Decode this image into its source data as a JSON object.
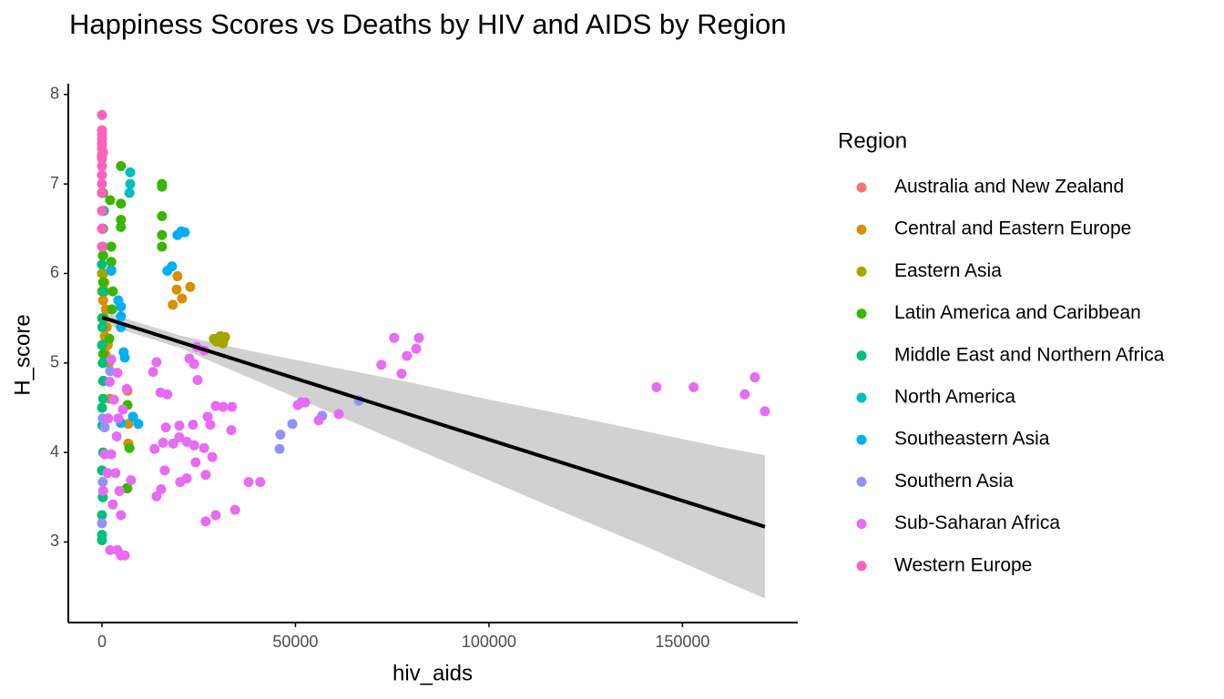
{
  "chart_data": {
    "type": "scatter",
    "title": "Happiness Scores vs Deaths by HIV and AIDS by Region",
    "x_label": "hiv_aids",
    "y_label": "H_score",
    "legend_title": "Region",
    "xlim": [
      -8700,
      179800
    ],
    "ylim": [
      2.1,
      8.12
    ],
    "xticks": [
      0,
      50000,
      100000,
      150000
    ],
    "yticks": [
      3,
      4,
      5,
      6,
      7,
      8
    ],
    "series": [
      {
        "name": "Australia and New Zealand",
        "color": "#F8766D",
        "x": [
          0,
          0,
          0,
          0
        ],
        "values": [
          7.31,
          7.28,
          7.33,
          7.29
        ]
      },
      {
        "name": "Central and Eastern Europe",
        "color": "#D89000",
        "x": [
          19500,
          19300,
          20700,
          22800,
          18300,
          6600,
          6800,
          6800,
          6600,
          200,
          400,
          600,
          800,
          300,
          1000,
          500,
          1200,
          700,
          1500,
          900,
          1800,
          400,
          2000
        ],
        "values": [
          5.97,
          5.82,
          5.72,
          5.85,
          5.65,
          4.69,
          4.32,
          4.1,
          3.6,
          6.2,
          6.0,
          5.9,
          5.8,
          5.7,
          5.6,
          5.5,
          5.4,
          5.3,
          5.2,
          5.1,
          5.0,
          4.8,
          4.6
        ]
      },
      {
        "name": "Eastern Asia",
        "color": "#A3A500",
        "x": [
          28900,
          30600,
          31300,
          31800,
          29600,
          0,
          0,
          0
        ],
        "values": [
          5.27,
          5.3,
          5.22,
          5.29,
          5.24,
          6.0,
          5.8,
          5.5
        ]
      },
      {
        "name": "Latin America and Caribbean",
        "color": "#39B600",
        "x": [
          15500,
          15500,
          15500,
          15500,
          15500,
          4900,
          4900,
          4900,
          4900,
          2100,
          2400,
          2400,
          2400,
          2800,
          2600,
          1900,
          7100,
          6400,
          6600,
          300,
          300,
          300,
          300,
          300,
          300,
          300
        ],
        "values": [
          7.0,
          6.97,
          6.64,
          6.43,
          6.3,
          7.2,
          6.78,
          6.6,
          6.52,
          6.82,
          6.3,
          6.13,
          6.04,
          5.8,
          5.6,
          5.27,
          4.05,
          3.6,
          4.53,
          6.9,
          6.5,
          6.2,
          5.9,
          5.5,
          5.1,
          4.8
        ]
      },
      {
        "name": "Middle East and Northern Africa",
        "color": "#00BF7D",
        "x": [
          0,
          100,
          200,
          0,
          300,
          100,
          0,
          200,
          400,
          0,
          100,
          300,
          0,
          200,
          0,
          0,
          0,
          500,
          100,
          300
        ],
        "values": [
          6.9,
          6.5,
          6.3,
          6.1,
          5.8,
          5.5,
          5.2,
          5.0,
          4.8,
          4.5,
          4.3,
          4.0,
          3.8,
          3.5,
          3.3,
          3.08,
          3.02,
          6.7,
          5.4,
          4.6
        ]
      },
      {
        "name": "North America",
        "color": "#00BFC4",
        "x": [
          7300,
          7300,
          7100
        ],
        "values": [
          7.13,
          7.0,
          6.9
        ]
      },
      {
        "name": "Southeastern Asia",
        "color": "#00B0F6",
        "x": [
          19500,
          20500,
          21400,
          18100,
          16900,
          4900,
          4900,
          4900,
          5600,
          5900,
          9400,
          8000,
          4900,
          2400,
          4200
        ],
        "values": [
          6.43,
          6.47,
          6.46,
          6.08,
          6.03,
          5.63,
          5.52,
          5.4,
          5.12,
          5.06,
          4.32,
          4.4,
          4.33,
          6.03,
          5.7
        ]
      },
      {
        "name": "Southern Asia",
        "color": "#9590FF",
        "x": [
          45900,
          46100,
          49200,
          56900,
          66400,
          51500,
          0,
          200,
          700,
          2100,
          200
        ],
        "values": [
          4.04,
          4.2,
          4.32,
          4.41,
          4.58,
          4.56,
          3.21,
          4.38,
          4.28,
          4.91,
          3.67
        ]
      },
      {
        "name": "Sub-Saharan Africa",
        "color": "#E76BF3",
        "x": [
          75500,
          72200,
          77400,
          78800,
          81200,
          81900,
          143300,
          152900,
          166100,
          168700,
          171300,
          56000,
          61200,
          52500,
          50600,
          33400,
          40900,
          37900,
          34400,
          29400,
          26800,
          28500,
          24200,
          26800,
          21900,
          20200,
          14100,
          15300,
          16200,
          16500,
          15800,
          13600,
          18400,
          20000,
          21900,
          23500,
          20000,
          23800,
          26400,
          31300,
          33600,
          29400,
          27300,
          28000,
          22600,
          23800,
          24700,
          24500,
          26400,
          14100,
          13200,
          15100,
          16900,
          2100,
          4000,
          4900,
          5900,
          2000,
          3100,
          4200,
          3800,
          2400,
          3500,
          4500,
          2800,
          4900,
          1600,
          700,
          1400,
          300,
          5400,
          6400,
          4000,
          2400,
          7500
        ],
        "values": [
          5.28,
          4.98,
          4.88,
          5.08,
          5.16,
          5.28,
          4.73,
          4.73,
          4.65,
          4.84,
          4.46,
          4.36,
          4.43,
          4.56,
          4.53,
          4.25,
          3.67,
          3.67,
          3.36,
          3.3,
          3.23,
          3.95,
          3.89,
          3.75,
          3.71,
          3.67,
          3.51,
          3.59,
          3.8,
          4.28,
          4.11,
          4.04,
          4.1,
          4.17,
          4.12,
          4.31,
          4.3,
          4.08,
          4.05,
          4.51,
          4.51,
          4.52,
          4.4,
          4.31,
          5.05,
          4.99,
          4.81,
          5.18,
          5.14,
          5.01,
          4.9,
          4.67,
          4.65,
          2.91,
          2.91,
          2.85,
          2.85,
          4.79,
          4.59,
          4.38,
          4.18,
          3.98,
          3.77,
          3.57,
          3.42,
          3.3,
          4.38,
          3.98,
          3.77,
          3.57,
          4.48,
          4.71,
          4.89,
          5.04,
          3.69
        ]
      },
      {
        "name": "Western Europe",
        "color": "#FF62BC",
        "x": [
          0,
          0,
          0,
          0,
          0,
          0,
          0,
          0,
          0,
          0,
          0,
          0,
          0,
          0,
          300
        ],
        "values": [
          7.77,
          7.6,
          7.55,
          7.5,
          7.45,
          7.4,
          7.3,
          7.2,
          7.1,
          7.0,
          6.9,
          6.7,
          6.5,
          6.3,
          7.35
        ]
      }
    ],
    "fit": {
      "color": "#000000",
      "x": [
        0,
        171300
      ],
      "values": [
        5.51,
        3.17
      ]
    },
    "band": {
      "color": "#cccccc",
      "x": [
        0,
        20000,
        40000,
        60000,
        80000,
        100000,
        120000,
        140000,
        160000,
        171300
      ],
      "upper": [
        5.58,
        5.31,
        5.12,
        4.95,
        4.78,
        4.59,
        4.42,
        4.24,
        4.06,
        3.97
      ],
      "lower": [
        5.44,
        5.17,
        4.8,
        4.43,
        4.06,
        3.69,
        3.32,
        2.96,
        2.58,
        2.37
      ]
    }
  }
}
